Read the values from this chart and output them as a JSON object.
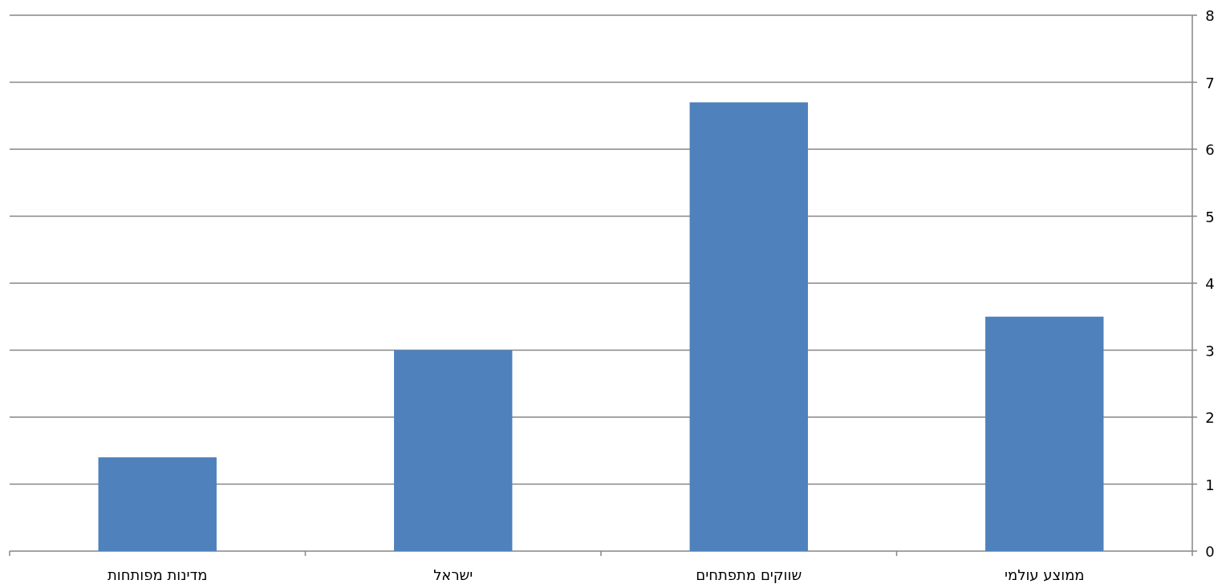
{
  "chart_data": {
    "type": "bar",
    "categories": [
      "מדינות מפותחות",
      "ישראל",
      "שווקים מתפתחים",
      "ממוצע עולמי"
    ],
    "values": [
      1.4,
      3.0,
      6.7,
      3.5
    ],
    "color": "#4f81bd",
    "ylim": [
      0,
      8
    ],
    "yticks": [
      0,
      1,
      2,
      3,
      4,
      5,
      6,
      7,
      8
    ],
    "grid": "y"
  }
}
